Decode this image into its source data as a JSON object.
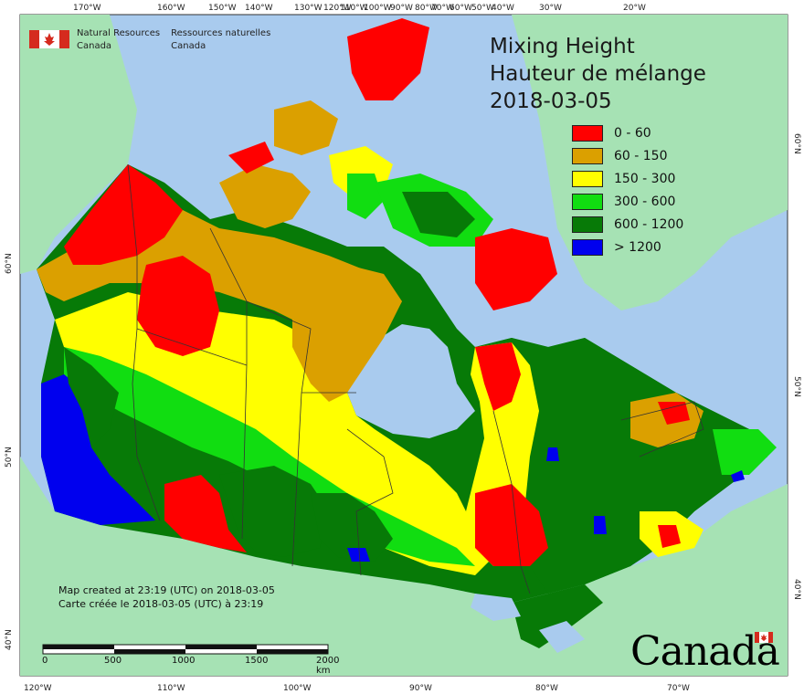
{
  "title": {
    "line1": "Mixing Height",
    "line2": "Hauteur de mélange",
    "date": "2018-03-05"
  },
  "legend": [
    {
      "label": "0 - 60",
      "color": "#ff0000"
    },
    {
      "label": "60 - 150",
      "color": "#dba000"
    },
    {
      "label": "150 - 300",
      "color": "#ffff00"
    },
    {
      "label": "300 - 600",
      "color": "#11dd11"
    },
    {
      "label": "600 - 1200",
      "color": "#077a07"
    },
    {
      "label": "> 1200",
      "color": "#0000ee"
    }
  ],
  "agency": {
    "en_line1": "Natural Resources",
    "en_line2": "Canada",
    "fr_line1": "Ressources naturelles",
    "fr_line2": "Canada"
  },
  "credit": {
    "en": "Map created at 23:19 (UTC) on 2018-03-05",
    "fr": "Carte créée le 2018-03-05 (UTC) à 23:19"
  },
  "wordmark": "Canada",
  "scale": {
    "labels": [
      "0",
      "500",
      "1000",
      "1500",
      "2000 km"
    ]
  },
  "graticule": {
    "top": [
      "170°W",
      "160°W",
      "150°W",
      "140°W",
      "130°W",
      "120°W",
      "110°W",
      "100°W",
      "90°W",
      "80°W",
      "70°W",
      "60°W",
      "50°W",
      "40°W",
      "30°W",
      "20°W"
    ],
    "bottom": [
      "120°W",
      "110°W",
      "100°W",
      "90°W",
      "80°W",
      "70°W"
    ],
    "left": [
      "60°N",
      "50°N",
      "40°N"
    ],
    "right": [
      "60°N",
      "50°N",
      "40°N"
    ]
  },
  "colors": {
    "ocean": "#a9cbee",
    "land_other": "#a6e2b4",
    "red": "#ff0000",
    "orange": "#dba000",
    "yellow": "#ffff00",
    "green": "#11dd11",
    "darkgreen": "#077a07",
    "blue": "#0000ee"
  }
}
